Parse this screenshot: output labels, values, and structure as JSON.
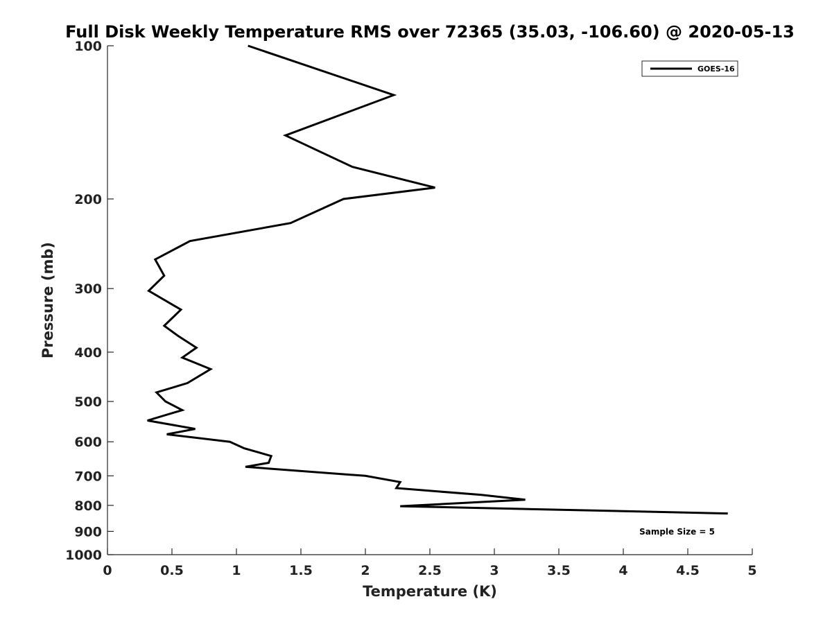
{
  "chart_data": {
    "type": "line",
    "title": "Full Disk Weekly Temperature RMS over 72365 (35.03, -106.60) @ 2020-05-13",
    "xlabel": "Temperature (K)",
    "ylabel": "Pressure (mb)",
    "xlim": [
      0,
      5
    ],
    "ylim": [
      100,
      1000
    ],
    "y_scale": "log",
    "y_reversed": true,
    "grid": false,
    "legend_position": "top-right",
    "x_ticks": [
      "0",
      "0.5",
      "1",
      "1.5",
      "2",
      "2.5",
      "3",
      "3.5",
      "4",
      "4.5",
      "5"
    ],
    "y_ticks": [
      "100",
      "200",
      "300",
      "400",
      "500",
      "600",
      "700",
      "800",
      "900",
      "1000"
    ],
    "series": [
      {
        "name": "GOES-16",
        "color": "#000000",
        "x": [
          1.09,
          2.22,
          1.38,
          1.9,
          2.54,
          1.83,
          1.42,
          0.64,
          0.37,
          0.44,
          0.32,
          0.57,
          0.44,
          0.55,
          0.69,
          0.58,
          0.8,
          0.62,
          0.38,
          0.45,
          0.58,
          0.31,
          0.68,
          0.46,
          0.95,
          1.06,
          1.27,
          1.25,
          1.07,
          2.0,
          2.27,
          2.24,
          2.9,
          3.24,
          2.27,
          4.81
        ],
        "y": [
          100,
          125,
          150,
          173,
          190,
          200,
          223,
          242,
          263,
          283,
          303,
          330,
          355,
          372,
          392,
          410,
          432,
          460,
          480,
          500,
          520,
          545,
          566,
          580,
          600,
          618,
          640,
          660,
          672,
          700,
          720,
          740,
          763,
          780,
          803,
          830
        ]
      }
    ],
    "annotations": [
      "Sample Size = 5"
    ]
  }
}
